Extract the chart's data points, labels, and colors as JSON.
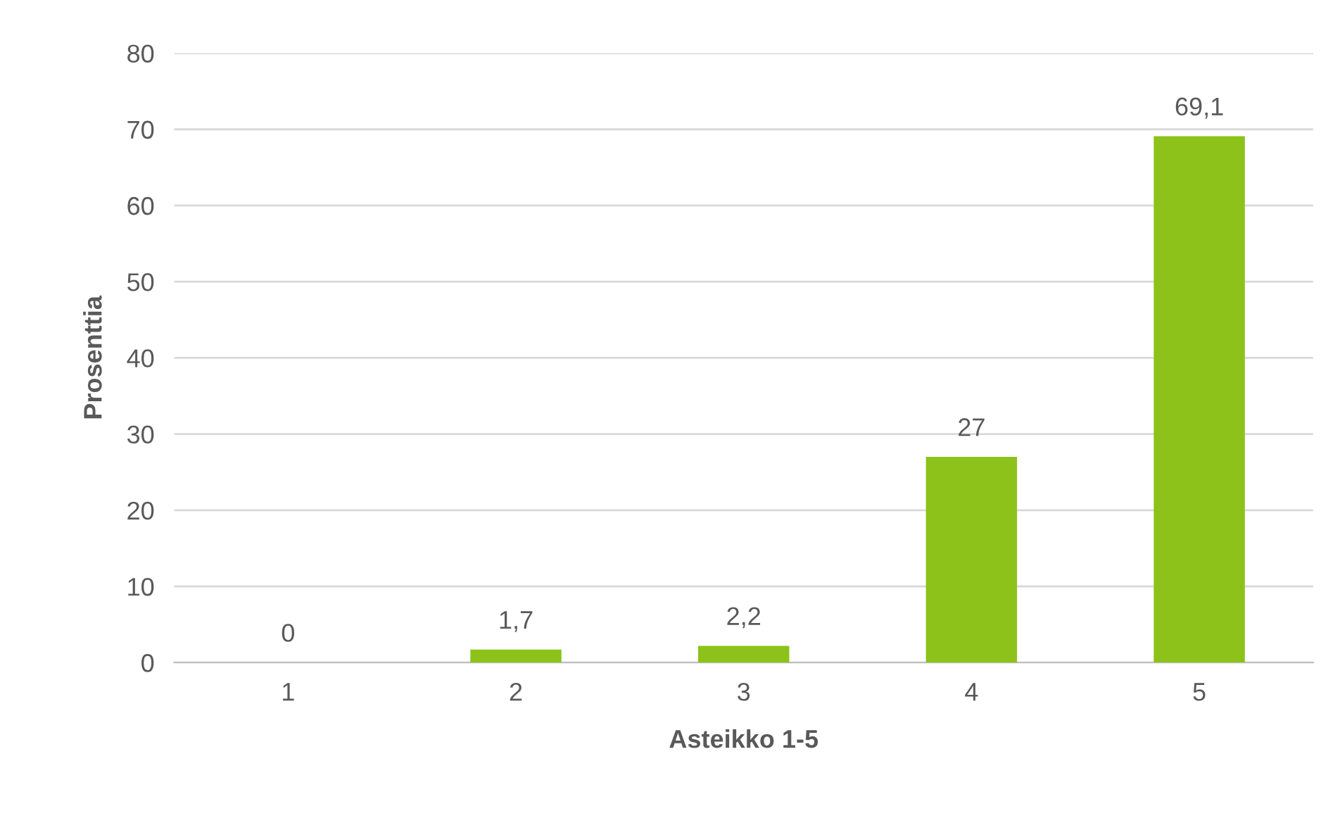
{
  "chart_data": {
    "type": "bar",
    "xlabel": "Asteikko 1-5",
    "ylabel": "Prosenttia",
    "categories": [
      "1",
      "2",
      "3",
      "4",
      "5"
    ],
    "values": [
      0,
      1.7,
      2.2,
      27,
      69.1
    ],
    "value_labels": [
      "0",
      "1,7",
      "2,2",
      "27",
      "69,1"
    ],
    "color": "#8cc21a",
    "ylim": [
      0,
      80
    ],
    "yticks": [
      0,
      10,
      20,
      30,
      40,
      50,
      60,
      70,
      80
    ],
    "grid": "y",
    "legend": false
  }
}
